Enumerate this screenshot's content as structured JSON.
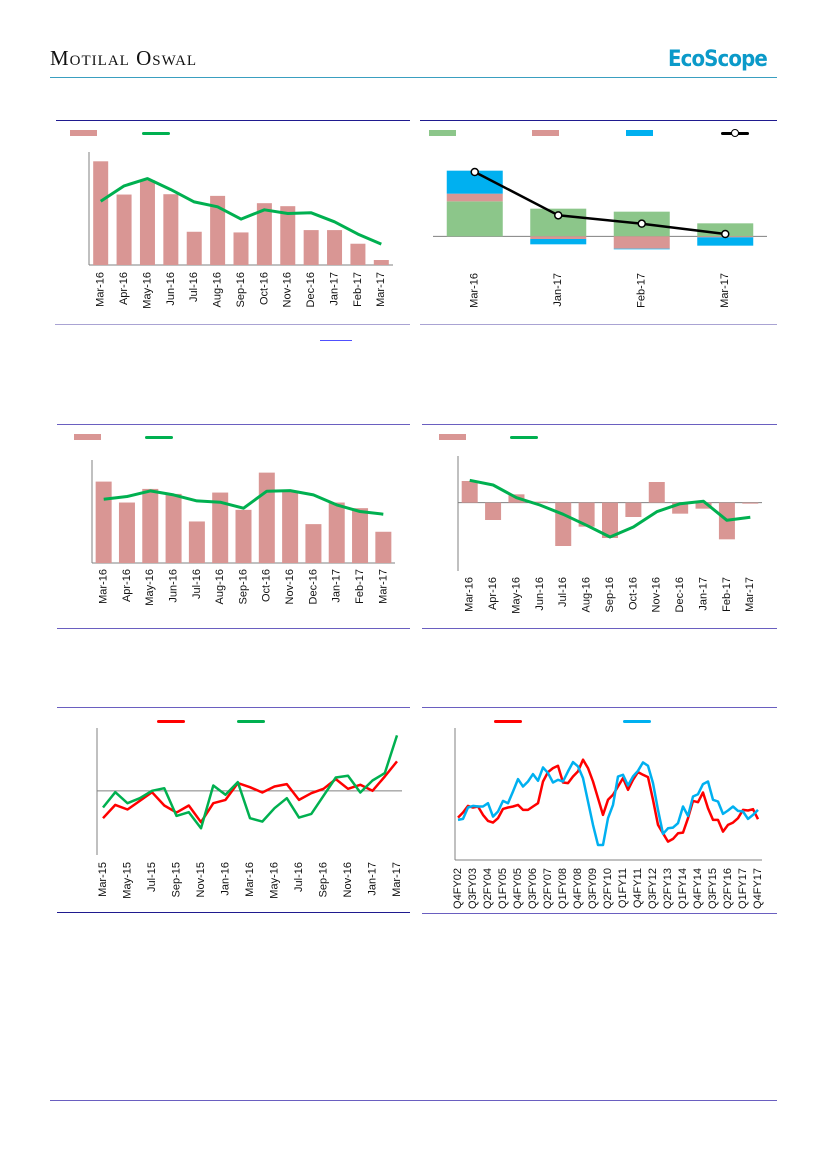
{
  "header": {
    "brand": "Motilal Oswal",
    "logo": "EcoScope",
    "rule_color": "#3a9fc0"
  },
  "colors": {
    "pink": "#d99694",
    "green": "#00b050",
    "light_green": "#8cc68a",
    "blue": "#00b0f0",
    "red": "#ff0000",
    "black": "#000000",
    "panel_top": "#1f1a8f",
    "panel_bottom": "#a9a3d3"
  },
  "chart_data": [
    {
      "type": "bar",
      "categories": [
        "Mar-16",
        "Apr-16",
        "May-16",
        "Jun-16",
        "Jul-16",
        "Aug-16",
        "Sep-16",
        "Oct-16",
        "Nov-16",
        "Dec-16",
        "Jan-17",
        "Feb-17",
        "Mar-17"
      ],
      "series": [
        {
          "kind": "bar",
          "color": "#d99694",
          "values": [
            312,
            212,
            255,
            213,
            100,
            208,
            98,
            186,
            177,
            105,
            105,
            64,
            15
          ]
        },
        {
          "kind": "line",
          "color": "#00b050",
          "values": [
            192,
            238,
            260,
            227,
            190,
            175,
            138,
            166,
            155,
            157,
            130,
            93,
            63
          ]
        }
      ],
      "ylim": [
        0,
        340
      ],
      "grid": false,
      "legend": "top-left"
    },
    {
      "type": "bar",
      "stacked": true,
      "categories": [
        "Mar-16",
        "Jan-17",
        "Feb-17",
        "Mar-17"
      ],
      "series": [
        {
          "kind": "stack",
          "color": "#8cc68a",
          "values": [
            105,
            83,
            74,
            39
          ]
        },
        {
          "kind": "stack",
          "color": "#d99694",
          "values": [
            23,
            -8,
            -37,
            -3
          ]
        },
        {
          "kind": "stack",
          "color": "#00b0f0",
          "values": [
            69,
            -16,
            -2,
            -25
          ]
        },
        {
          "kind": "line-marker",
          "color": "#000000",
          "values": [
            193,
            63,
            38,
            7
          ]
        }
      ],
      "ylim": [
        -80,
        220
      ],
      "grid": false,
      "legend": "top"
    },
    {
      "type": "bar",
      "categories": [
        "Mar-16",
        "Apr-16",
        "May-16",
        "Jun-16",
        "Jul-16",
        "Aug-16",
        "Sep-16",
        "Oct-16",
        "Nov-16",
        "Dec-16",
        "Jan-17",
        "Feb-17",
        "Mar-17"
      ],
      "series": [
        {
          "kind": "bar",
          "color": "#d99694",
          "values": [
            245,
            182,
            223,
            208,
            125,
            212,
            160,
            272,
            218,
            117,
            182,
            165,
            94
          ]
        },
        {
          "kind": "line",
          "color": "#00b050",
          "values": [
            192,
            200,
            217,
            205,
            187,
            183,
            165,
            216,
            218,
            205,
            175,
            155,
            147
          ]
        }
      ],
      "ylim": [
        0,
        310
      ],
      "grid": false,
      "legend": "top-left"
    },
    {
      "type": "bar",
      "categories": [
        "Mar-16",
        "Apr-16",
        "May-16",
        "Jun-16",
        "Jul-16",
        "Aug-16",
        "Sep-16",
        "Oct-16",
        "Nov-16",
        "Dec-16",
        "Jan-17",
        "Feb-17",
        "Mar-17"
      ],
      "series": [
        {
          "kind": "bar",
          "color": "#d99694",
          "values": [
            65,
            -52,
            25,
            3,
            -130,
            -72,
            -106,
            -43,
            62,
            -33,
            -18,
            -110,
            -3
          ]
        },
        {
          "kind": "line",
          "color": "#00b050",
          "values": [
            67,
            53,
            15,
            -7,
            -35,
            -68,
            -103,
            -73,
            -27,
            -3,
            4,
            -53,
            -44
          ]
        }
      ],
      "ylim": [
        -205,
        140
      ],
      "grid": false,
      "legend": "top-left"
    },
    {
      "type": "line",
      "tick_labels": [
        "Mar-15",
        "May-15",
        "Jul-15",
        "Sep-15",
        "Nov-15",
        "Jan-16",
        "Mar-16",
        "May-16",
        "Jul-16",
        "Sep-16",
        "Nov-16",
        "Jan-17",
        "Mar-17"
      ],
      "tick_every": 2,
      "series": [
        {
          "kind": "line",
          "color": "#ff0000",
          "values": [
            -82,
            -42,
            -56,
            -30,
            -4,
            -44,
            -65,
            -44,
            -94,
            -37,
            -27,
            23,
            11,
            -5,
            13,
            20,
            -27,
            -7,
            6,
            35,
            6,
            18,
            0,
            43,
            88
          ]
        },
        {
          "kind": "line",
          "color": "#00b050",
          "values": [
            -50,
            -4,
            -37,
            -22,
            0,
            8,
            -75,
            -64,
            -112,
            16,
            -12,
            26,
            -82,
            -92,
            -52,
            -22,
            -80,
            -69,
            -15,
            40,
            45,
            -5,
            31,
            53,
            166
          ]
        }
      ],
      "ylim": [
        -192,
        188
      ],
      "grid": false,
      "legend": "top"
    },
    {
      "type": "line",
      "tick_labels": [
        "Q4FY02",
        "Q3FY03",
        "Q2FY04",
        "Q1FY05",
        "Q4FY05",
        "Q3FY06",
        "Q2FY07",
        "Q1FY08",
        "Q4FY08",
        "Q3FY09",
        "Q2FY10",
        "Q1FY11",
        "Q4FY11",
        "Q3FY12",
        "Q2FY13",
        "Q1FY14",
        "Q4FY14",
        "Q3FY15",
        "Q2FY16",
        "Q1FY17",
        "Q4FY17"
      ],
      "tick_every": 3,
      "series": [
        {
          "kind": "line",
          "color": "#ff0000",
          "values": [
            127,
            142,
            162,
            157,
            160,
            135,
            117,
            112,
            125,
            153,
            157,
            160,
            165,
            150,
            150,
            160,
            170,
            235,
            263,
            275,
            282,
            232,
            230,
            250,
            265,
            300,
            275,
            235,
            185,
            135,
            180,
            195,
            220,
            245,
            210,
            240,
            263,
            255,
            248,
            180,
            105,
            80,
            55,
            63,
            80,
            82,
            125,
            177,
            173,
            202,
            155,
            120,
            120,
            85,
            105,
            112,
            125,
            150,
            148,
            152,
            122
          ]
        },
        {
          "kind": "line",
          "color": "#00b0f0",
          "values": [
            120,
            123,
            157,
            162,
            160,
            160,
            170,
            130,
            145,
            177,
            170,
            205,
            242,
            220,
            235,
            257,
            237,
            277,
            260,
            232,
            240,
            235,
            265,
            293,
            280,
            245,
            175,
            105,
            45,
            45,
            125,
            165,
            250,
            255,
            223,
            250,
            267,
            292,
            282,
            230,
            150,
            78,
            95,
            97,
            110,
            160,
            132,
            190,
            197,
            227,
            235,
            180,
            175,
            138,
            148,
            160,
            147,
            145,
            123,
            135,
            150
          ]
        }
      ],
      "ylim": [
        0,
        395
      ],
      "grid": false,
      "legend": "top"
    }
  ]
}
